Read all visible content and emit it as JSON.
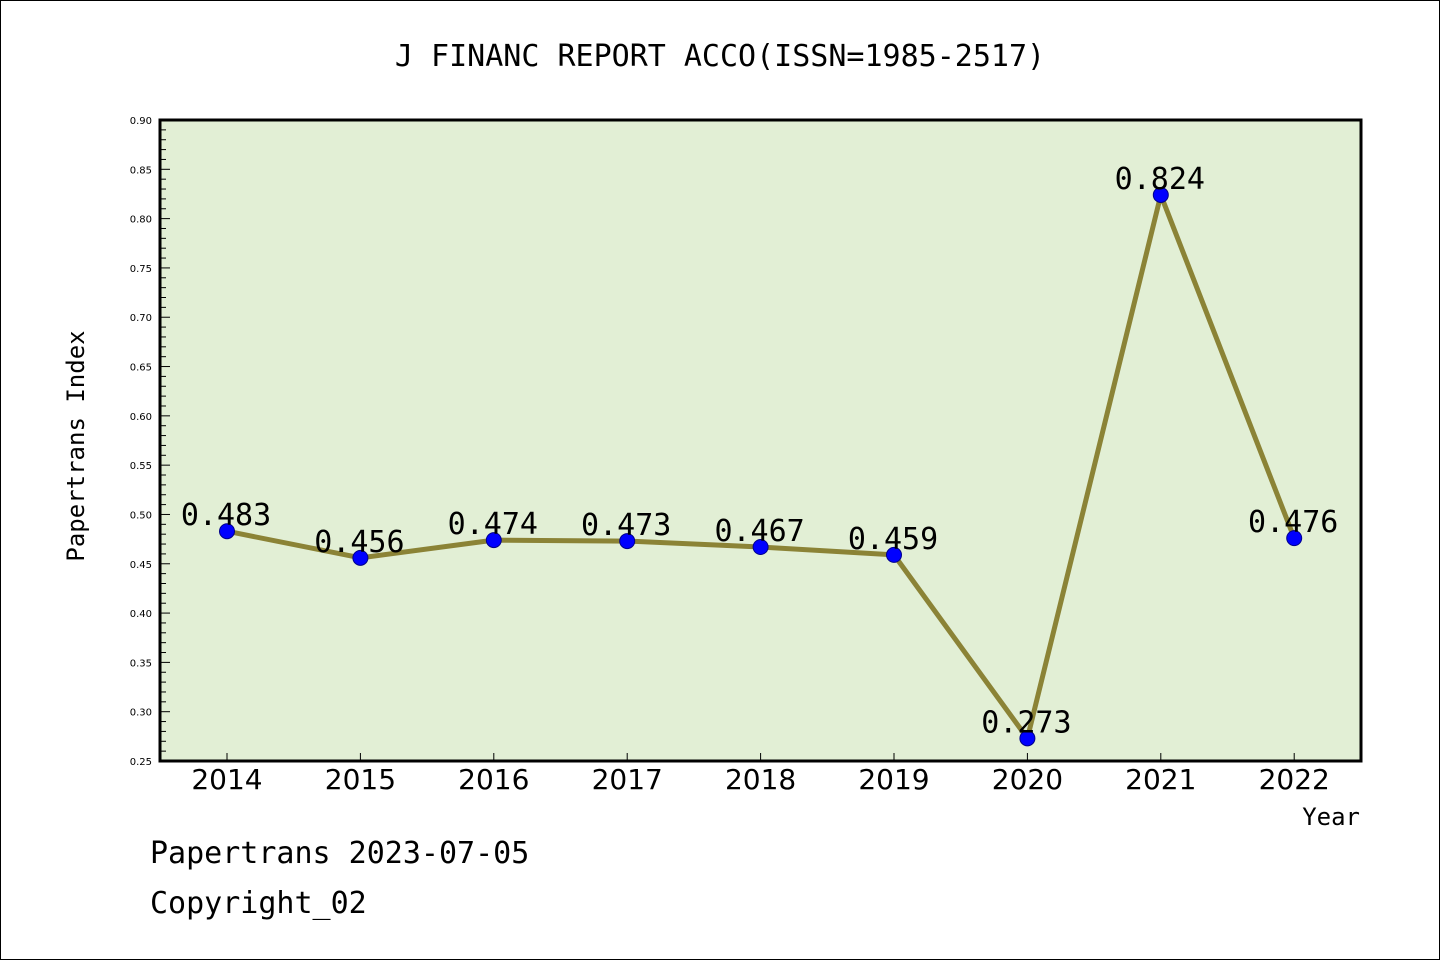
{
  "chart_data": {
    "type": "line",
    "title": "J FINANC REPORT ACCO(ISSN=1985-2517)",
    "xlabel": "Year",
    "ylabel": "Papertrans Index",
    "x": [
      "2014",
      "2015",
      "2016",
      "2017",
      "2018",
      "2019",
      "2020",
      "2021",
      "2022"
    ],
    "series": [
      {
        "values": [
          0.483,
          0.456,
          0.474,
          0.473,
          0.467,
          0.459,
          0.273,
          0.824,
          0.476
        ],
        "labels": [
          "0.483",
          "0.456",
          "0.474",
          "0.473",
          "0.467",
          "0.459",
          "0.273",
          "0.824",
          "0.476"
        ]
      }
    ],
    "ylim": [
      0.25,
      0.9
    ],
    "yticks": [
      "0.25",
      "0.30",
      "0.35",
      "0.40",
      "0.45",
      "0.50",
      "0.55",
      "0.60",
      "0.65",
      "0.70",
      "0.75",
      "0.80",
      "0.85",
      "0.90"
    ],
    "grid": false,
    "legend": "none"
  },
  "colors": {
    "plot_background": "#e2efd5",
    "line": "#8b8336",
    "marker": "#0000ff",
    "marker_edge": "#00008b"
  },
  "footer": {
    "source": "Papertrans 2023-07-05",
    "copyright": "Copyright_02"
  }
}
